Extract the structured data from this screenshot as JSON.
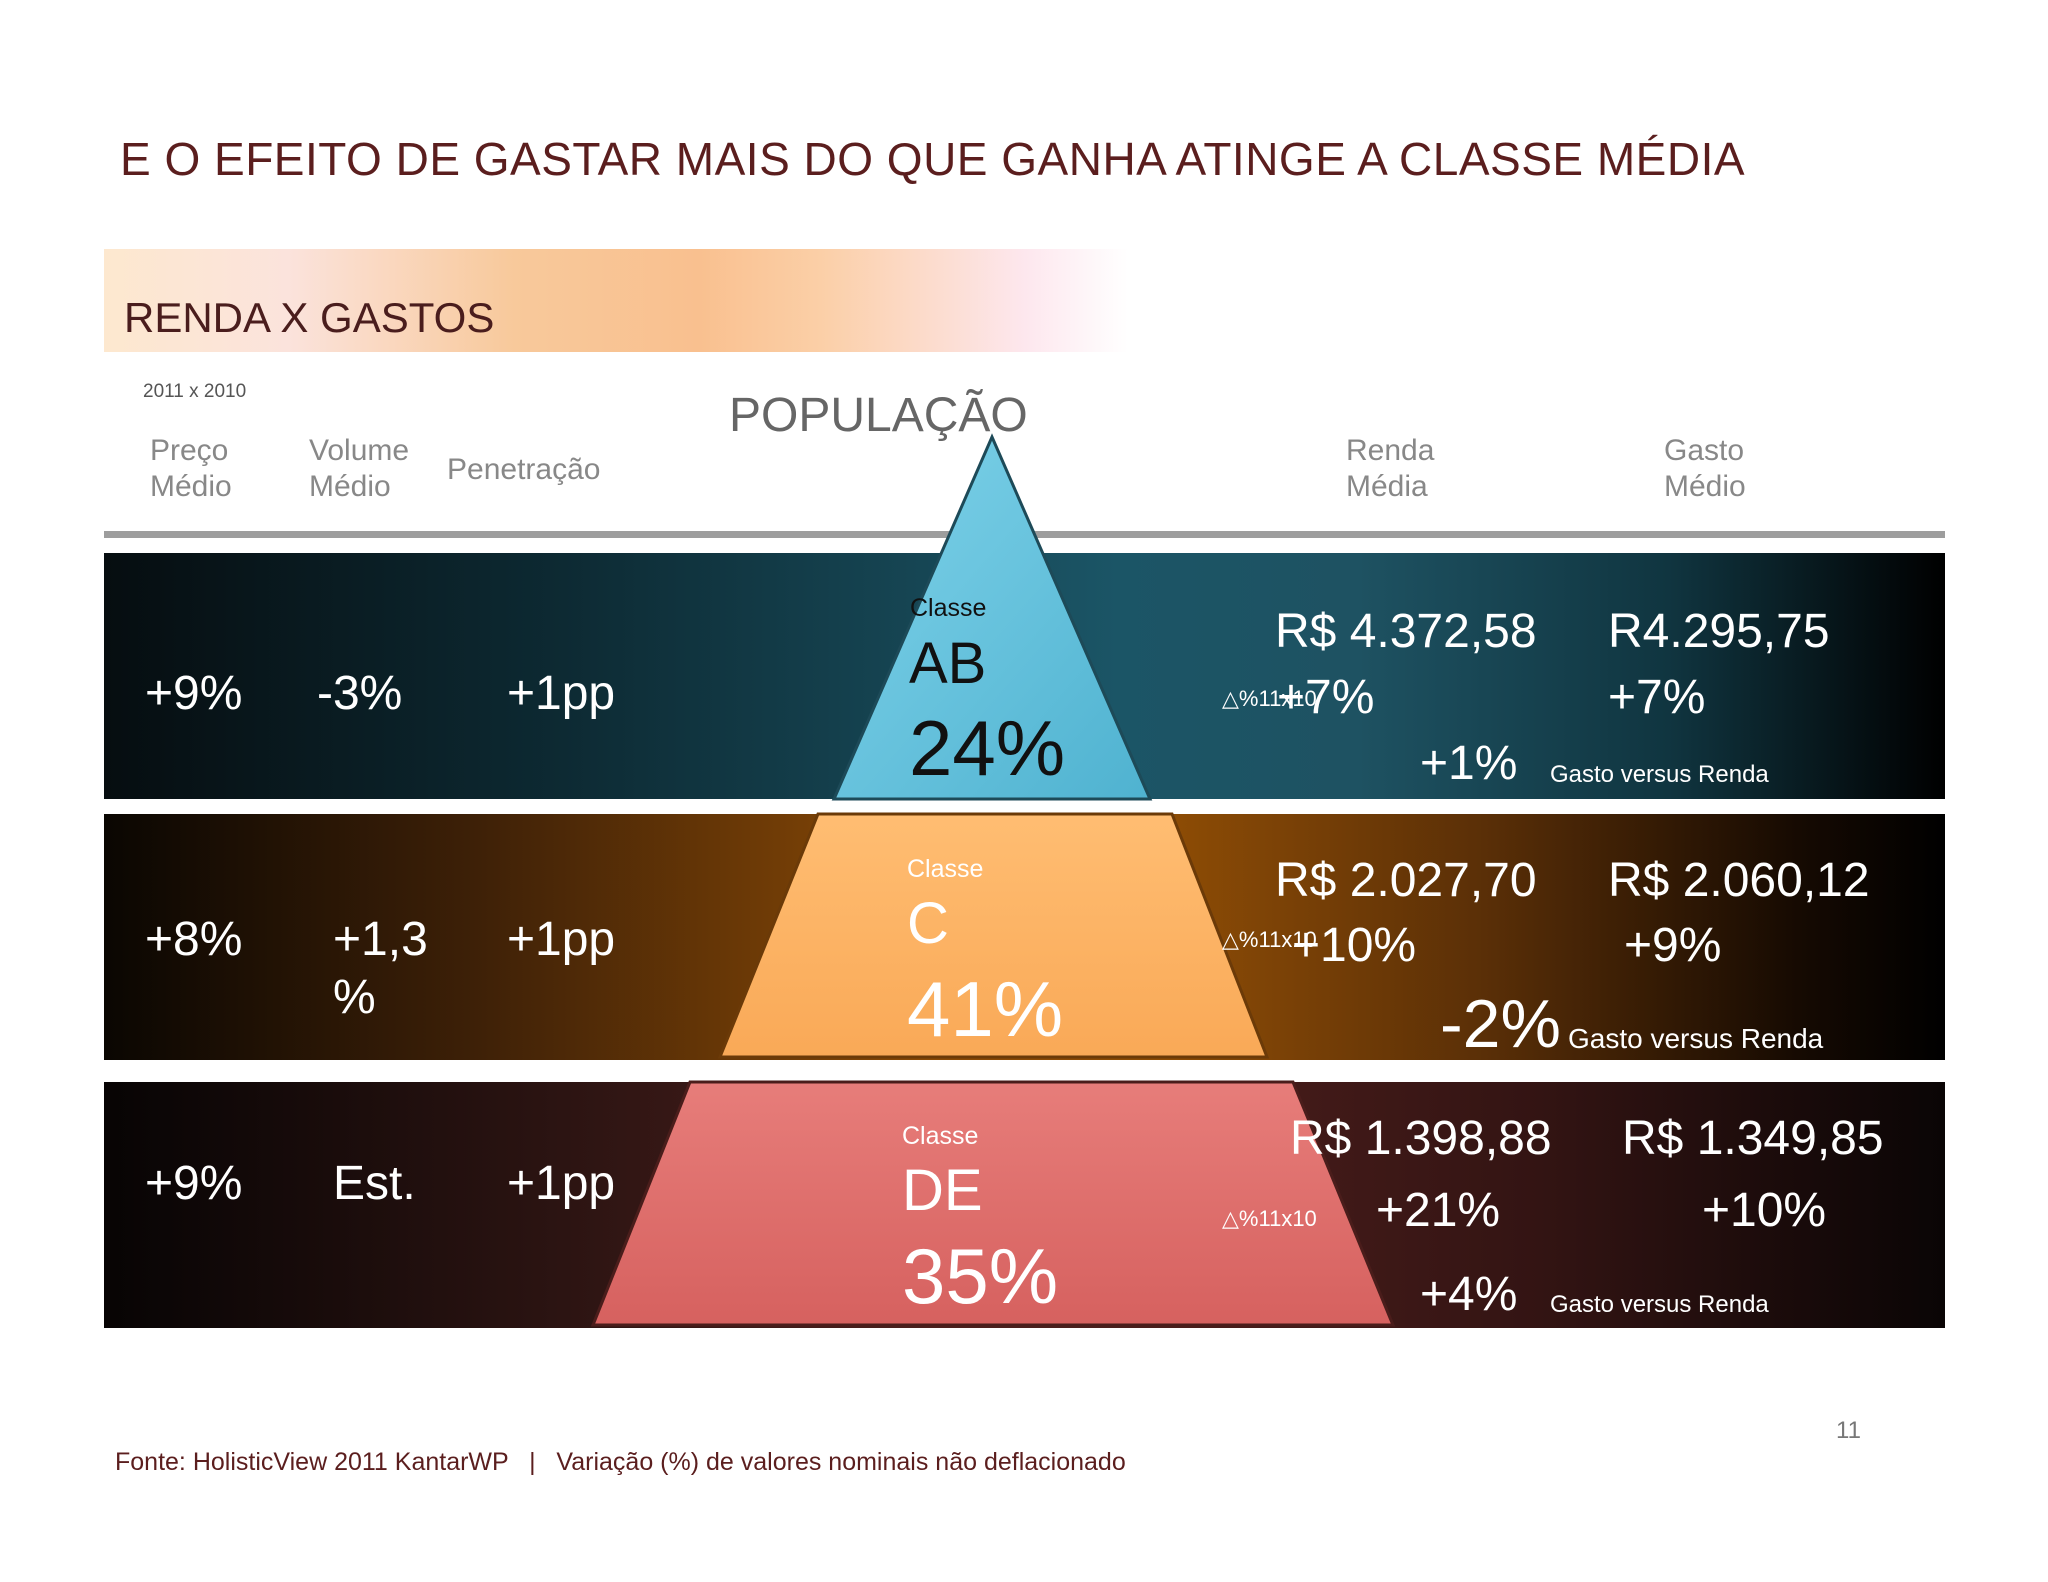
{
  "title": "E O EFEITO DE GASTAR MAIS DO QUE GANHA ATINGE A CLASSE MÉDIA",
  "subtitle": "RENDA X GASTOS",
  "period": "2011 x 2010",
  "population_label": "POPULAÇÃO",
  "headers": {
    "preco": [
      "Preço",
      "Médio"
    ],
    "volume": [
      "Volume",
      "Médio"
    ],
    "penetracao": "Penetração",
    "renda": [
      "Renda",
      "Média"
    ],
    "gasto": [
      "Gasto",
      "Médio"
    ]
  },
  "colors": {
    "title": "#5b1e1e",
    "class_ab": "#62c2dd",
    "class_c": "#fbaf5e",
    "class_de": "#dc6a69"
  },
  "rows": [
    {
      "preco": "+9%",
      "volume": "-3%",
      "penetracao": "+1pp",
      "classe_label": "Classe",
      "classe": "AB",
      "populacao": "24%",
      "renda": "R$ 4.372,58",
      "gasto": "R4.295,75",
      "delta_label": "△%11x10",
      "renda_var": "+7%",
      "gasto_var": "+7%",
      "diff": "+1%",
      "diff_label": "Gasto versus Renda"
    },
    {
      "preco": "+8%",
      "volume": "+1,3 %",
      "penetracao": "+1pp",
      "classe_label": "Classe",
      "classe": "C",
      "populacao": "41%",
      "renda": "R$ 2.027,70",
      "gasto": "R$ 2.060,12",
      "delta_label": "△%11x10",
      "renda_var": "+10%",
      "gasto_var": "+9%",
      "diff": "-2%",
      "diff_label": "Gasto versus Renda"
    },
    {
      "preco": "+9%",
      "volume": "Est.",
      "penetracao": "+1pp",
      "classe_label": "Classe",
      "classe": "DE",
      "populacao": "35%",
      "renda": "R$ 1.398,88",
      "gasto": "R$ 1.349,85",
      "delta_label": "△%11x10",
      "renda_var": "+21%",
      "gasto_var": "+10%",
      "diff": "+4%",
      "diff_label": "Gasto versus Renda"
    }
  ],
  "footer": "Fonte: HolisticView 2011 KantarWP   |   Variação (%) de valores nominais não deflacionado",
  "page_number": "11"
}
